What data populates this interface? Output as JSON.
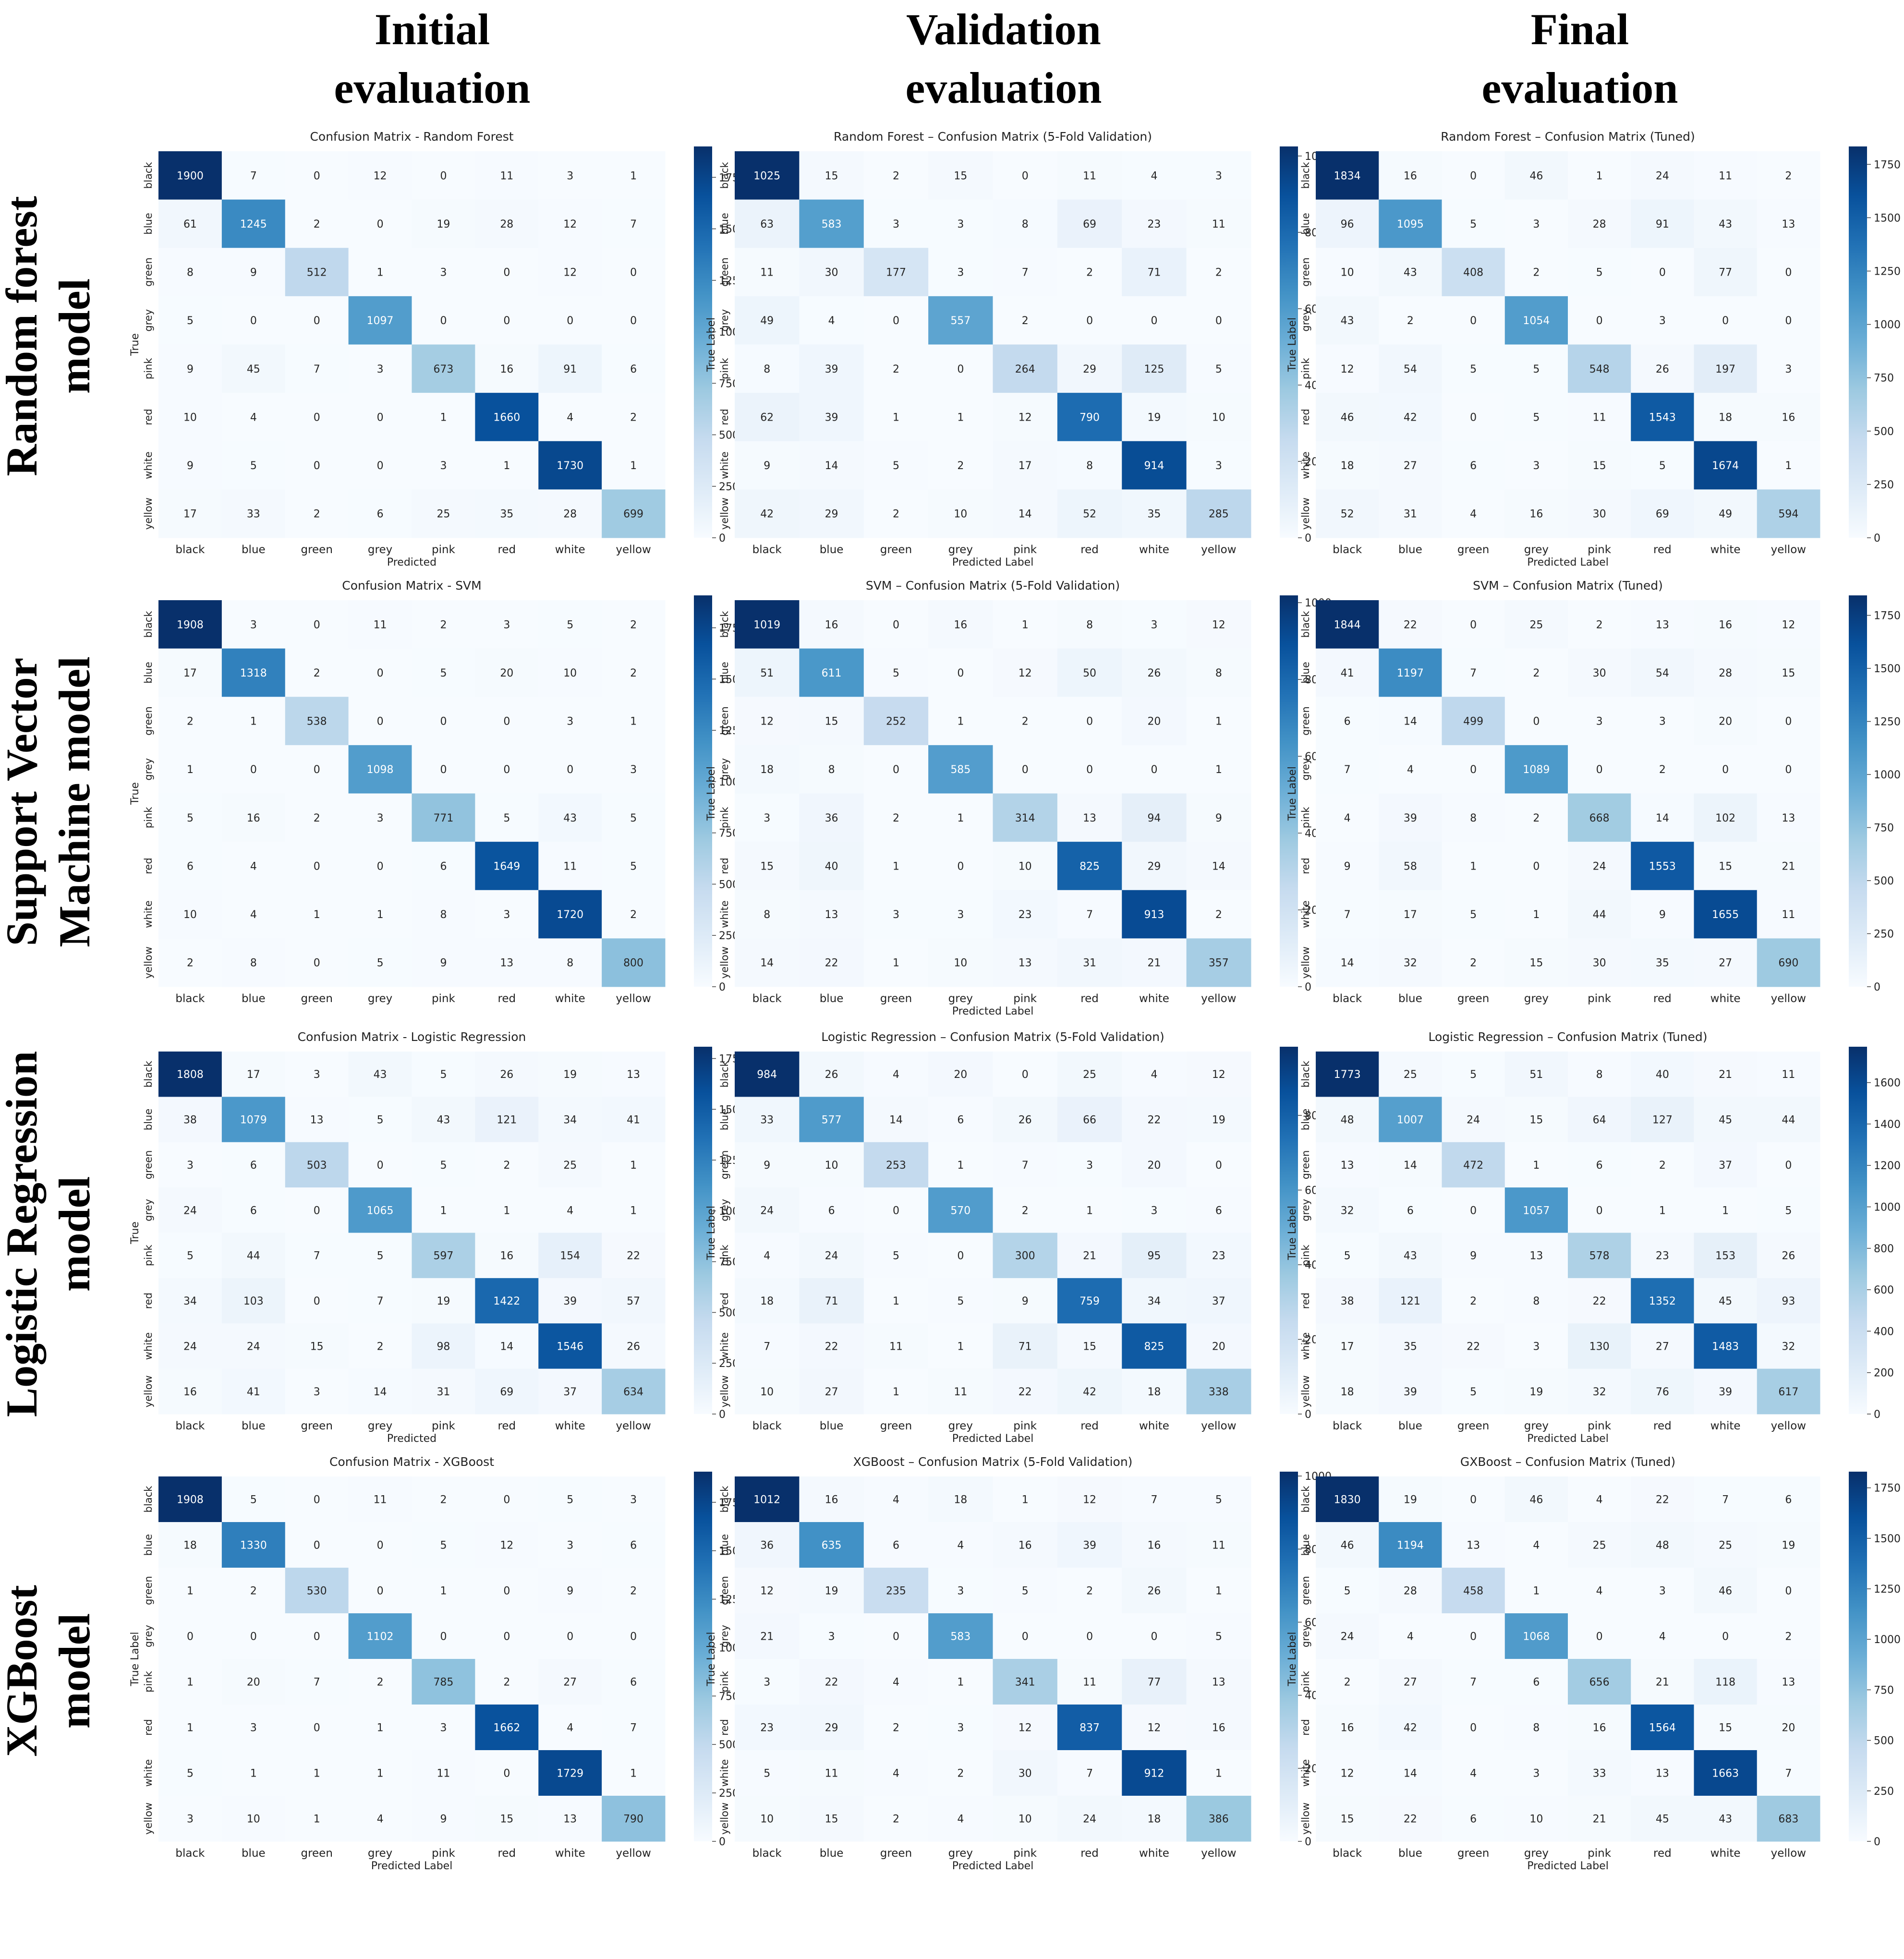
{
  "column_titles": [
    {
      "line1": "Initial",
      "line2": "evaluation"
    },
    {
      "line1": "Validation",
      "line2": "evaluation"
    },
    {
      "line1": "Final",
      "line2": "evaluation"
    }
  ],
  "row_titles": [
    {
      "line1": "Random forest",
      "line2": "model"
    },
    {
      "line1": "Support Vector",
      "line2": "Machine model"
    },
    {
      "line1": "Logistic Regression",
      "line2": "model"
    },
    {
      "line1": "XGBoost",
      "line2": "model"
    }
  ],
  "colors": {
    "low": "#f7fbff",
    "mid": "#1aa0cf",
    "high": "#08306b"
  },
  "chart_data": [
    {
      "type": "heatmap",
      "title": "Confusion Matrix - Random Forest",
      "xlabel": "Predicted",
      "ylabel": "True",
      "categories": [
        "black",
        "blue",
        "green",
        "grey",
        "pink",
        "red",
        "white",
        "yellow"
      ],
      "vmin": 0,
      "vmax": 1900,
      "colorbar_ticks": [
        "0",
        "250",
        "500",
        "750",
        "1000",
        "1250",
        "1500",
        "1750"
      ],
      "matrix": [
        [
          1900,
          7,
          0,
          12,
          0,
          11,
          3,
          1
        ],
        [
          61,
          1245,
          2,
          0,
          19,
          28,
          12,
          7
        ],
        [
          8,
          9,
          512,
          1,
          3,
          0,
          12,
          0
        ],
        [
          5,
          0,
          0,
          1097,
          0,
          0,
          0,
          0
        ],
        [
          9,
          45,
          7,
          3,
          673,
          16,
          91,
          6
        ],
        [
          10,
          4,
          0,
          0,
          1,
          1660,
          4,
          2
        ],
        [
          9,
          5,
          0,
          0,
          3,
          1,
          1730,
          1
        ],
        [
          17,
          33,
          2,
          6,
          25,
          35,
          28,
          699
        ]
      ]
    },
    {
      "type": "heatmap",
      "title": "Random Forest – Confusion Matrix (5-Fold Validation)",
      "xlabel": "Predicted Label",
      "ylabel": "True Label",
      "categories": [
        "black",
        "blue",
        "green",
        "grey",
        "pink",
        "red",
        "white",
        "yellow"
      ],
      "vmin": 0,
      "vmax": 1025,
      "colorbar_ticks": [
        "0",
        "200",
        "400",
        "600",
        "800",
        "1000"
      ],
      "matrix": [
        [
          1025,
          15,
          2,
          15,
          0,
          11,
          4,
          3
        ],
        [
          63,
          583,
          3,
          3,
          8,
          69,
          23,
          11
        ],
        [
          11,
          30,
          177,
          3,
          7,
          2,
          71,
          2
        ],
        [
          49,
          4,
          0,
          557,
          2,
          0,
          0,
          0
        ],
        [
          8,
          39,
          2,
          0,
          264,
          29,
          125,
          5
        ],
        [
          62,
          39,
          1,
          1,
          12,
          790,
          19,
          10
        ],
        [
          9,
          14,
          5,
          2,
          17,
          8,
          914,
          3
        ],
        [
          42,
          29,
          2,
          10,
          14,
          52,
          35,
          285
        ]
      ]
    },
    {
      "type": "heatmap",
      "title": "Random Forest – Confusion Matrix (Tuned)",
      "xlabel": "Predicted Label",
      "ylabel": "True Label",
      "categories": [
        "black",
        "blue",
        "green",
        "grey",
        "pink",
        "red",
        "white",
        "yellow"
      ],
      "vmin": 0,
      "vmax": 1834,
      "colorbar_ticks": [
        "0",
        "250",
        "500",
        "750",
        "1000",
        "1250",
        "1500",
        "1750"
      ],
      "matrix": [
        [
          1834,
          16,
          0,
          46,
          1,
          24,
          11,
          2
        ],
        [
          96,
          1095,
          5,
          3,
          28,
          91,
          43,
          13
        ],
        [
          10,
          43,
          408,
          2,
          5,
          0,
          77,
          0
        ],
        [
          43,
          2,
          0,
          1054,
          0,
          3,
          0,
          0
        ],
        [
          12,
          54,
          5,
          5,
          548,
          26,
          197,
          3
        ],
        [
          46,
          42,
          0,
          5,
          11,
          1543,
          18,
          16
        ],
        [
          18,
          27,
          6,
          3,
          15,
          5,
          1674,
          1
        ],
        [
          52,
          31,
          4,
          16,
          30,
          69,
          49,
          594
        ]
      ]
    },
    {
      "type": "heatmap",
      "title": "Confusion Matrix - SVM",
      "xlabel": "",
      "ylabel": "True",
      "categories": [
        "black",
        "blue",
        "green",
        "grey",
        "pink",
        "red",
        "white",
        "yellow"
      ],
      "vmin": 0,
      "vmax": 1908,
      "colorbar_ticks": [
        "0",
        "250",
        "500",
        "750",
        "1000",
        "1250",
        "1500",
        "1750"
      ],
      "matrix": [
        [
          1908,
          3,
          0,
          11,
          2,
          3,
          5,
          2
        ],
        [
          17,
          1318,
          2,
          0,
          5,
          20,
          10,
          2
        ],
        [
          2,
          1,
          538,
          0,
          0,
          0,
          3,
          1
        ],
        [
          1,
          0,
          0,
          1098,
          0,
          0,
          0,
          3
        ],
        [
          5,
          16,
          2,
          3,
          771,
          5,
          43,
          5
        ],
        [
          6,
          4,
          0,
          0,
          6,
          1649,
          11,
          5
        ],
        [
          10,
          4,
          1,
          1,
          8,
          3,
          1720,
          2
        ],
        [
          2,
          8,
          0,
          5,
          9,
          13,
          8,
          800
        ]
      ]
    },
    {
      "type": "heatmap",
      "title": "SVM – Confusion Matrix (5-Fold Validation)",
      "xlabel": "Predicted Label",
      "ylabel": "True Label",
      "categories": [
        "black",
        "blue",
        "green",
        "grey",
        "pink",
        "red",
        "white",
        "yellow"
      ],
      "vmin": 0,
      "vmax": 1019,
      "colorbar_ticks": [
        "0",
        "200",
        "400",
        "600",
        "800",
        "1000"
      ],
      "matrix": [
        [
          1019,
          16,
          0,
          16,
          1,
          8,
          3,
          12
        ],
        [
          51,
          611,
          5,
          0,
          12,
          50,
          26,
          8
        ],
        [
          12,
          15,
          252,
          1,
          2,
          0,
          20,
          1
        ],
        [
          18,
          8,
          0,
          585,
          0,
          0,
          0,
          1
        ],
        [
          3,
          36,
          2,
          1,
          314,
          13,
          94,
          9
        ],
        [
          15,
          40,
          1,
          0,
          10,
          825,
          29,
          14
        ],
        [
          8,
          13,
          3,
          3,
          23,
          7,
          913,
          2
        ],
        [
          14,
          22,
          1,
          10,
          13,
          31,
          21,
          357
        ]
      ]
    },
    {
      "type": "heatmap",
      "title": "SVM – Confusion Matrix (Tuned)",
      "xlabel": "",
      "ylabel": "True Label",
      "categories": [
        "black",
        "blue",
        "green",
        "grey",
        "pink",
        "red",
        "white",
        "yellow"
      ],
      "vmin": 0,
      "vmax": 1844,
      "colorbar_ticks": [
        "0",
        "250",
        "500",
        "750",
        "1000",
        "1250",
        "1500",
        "1750"
      ],
      "matrix": [
        [
          1844,
          22,
          0,
          25,
          2,
          13,
          16,
          12
        ],
        [
          41,
          1197,
          7,
          2,
          30,
          54,
          28,
          15
        ],
        [
          6,
          14,
          499,
          0,
          3,
          3,
          20,
          0
        ],
        [
          7,
          4,
          0,
          1089,
          0,
          2,
          0,
          0
        ],
        [
          4,
          39,
          8,
          2,
          668,
          14,
          102,
          13
        ],
        [
          9,
          58,
          1,
          0,
          24,
          1553,
          15,
          21
        ],
        [
          7,
          17,
          5,
          1,
          44,
          9,
          1655,
          11
        ],
        [
          14,
          32,
          2,
          15,
          30,
          35,
          27,
          690
        ]
      ]
    },
    {
      "type": "heatmap",
      "title": "Confusion Matrix - Logistic Regression",
      "xlabel": "Predicted",
      "ylabel": "True",
      "categories": [
        "black",
        "blue",
        "green",
        "grey",
        "pink",
        "red",
        "white",
        "yellow"
      ],
      "vmin": 0,
      "vmax": 1808,
      "colorbar_ticks": [
        "0",
        "250",
        "500",
        "750",
        "1000",
        "1250",
        "1500",
        "1750"
      ],
      "matrix": [
        [
          1808,
          17,
          3,
          43,
          5,
          26,
          19,
          13
        ],
        [
          38,
          1079,
          13,
          5,
          43,
          121,
          34,
          41
        ],
        [
          3,
          6,
          503,
          0,
          5,
          2,
          25,
          1
        ],
        [
          24,
          6,
          0,
          1065,
          1,
          1,
          4,
          1
        ],
        [
          5,
          44,
          7,
          5,
          597,
          16,
          154,
          22
        ],
        [
          34,
          103,
          0,
          7,
          19,
          1422,
          39,
          57
        ],
        [
          24,
          24,
          15,
          2,
          98,
          14,
          1546,
          26
        ],
        [
          16,
          41,
          3,
          14,
          31,
          69,
          37,
          634
        ]
      ]
    },
    {
      "type": "heatmap",
      "title": "Logistic Regression – Confusion Matrix (5-Fold Validation)",
      "xlabel": "Predicted Label",
      "ylabel": "True Label",
      "categories": [
        "black",
        "blue",
        "green",
        "grey",
        "pink",
        "red",
        "white",
        "yellow"
      ],
      "vmin": 0,
      "vmax": 984,
      "colorbar_ticks": [
        "0",
        "200",
        "400",
        "600",
        "800"
      ],
      "matrix": [
        [
          984,
          26,
          4,
          20,
          0,
          25,
          4,
          12
        ],
        [
          33,
          577,
          14,
          6,
          26,
          66,
          22,
          19
        ],
        [
          9,
          10,
          253,
          1,
          7,
          3,
          20,
          0
        ],
        [
          24,
          6,
          0,
          570,
          2,
          1,
          3,
          6
        ],
        [
          4,
          24,
          5,
          0,
          300,
          21,
          95,
          23
        ],
        [
          18,
          71,
          1,
          5,
          9,
          759,
          34,
          37
        ],
        [
          7,
          22,
          11,
          1,
          71,
          15,
          825,
          20
        ],
        [
          10,
          27,
          1,
          11,
          22,
          42,
          18,
          338
        ]
      ]
    },
    {
      "type": "heatmap",
      "title": "Logistic Regression – Confusion Matrix (Tuned)",
      "xlabel": "Predicted Label",
      "ylabel": "True Label",
      "categories": [
        "black",
        "blue",
        "green",
        "grey",
        "pink",
        "red",
        "white",
        "yellow"
      ],
      "vmin": 0,
      "vmax": 1773,
      "colorbar_ticks": [
        "0",
        "200",
        "400",
        "600",
        "800",
        "1000",
        "1200",
        "1400",
        "1600"
      ],
      "matrix": [
        [
          1773,
          25,
          5,
          51,
          8,
          40,
          21,
          11
        ],
        [
          48,
          1007,
          24,
          15,
          64,
          127,
          45,
          44
        ],
        [
          13,
          14,
          472,
          1,
          6,
          2,
          37,
          0
        ],
        [
          32,
          6,
          0,
          1057,
          0,
          1,
          1,
          5
        ],
        [
          5,
          43,
          9,
          13,
          578,
          23,
          153,
          26
        ],
        [
          38,
          121,
          2,
          8,
          22,
          1352,
          45,
          93
        ],
        [
          17,
          35,
          22,
          3,
          130,
          27,
          1483,
          32
        ],
        [
          18,
          39,
          5,
          19,
          32,
          76,
          39,
          617
        ]
      ]
    },
    {
      "type": "heatmap",
      "title": "Confusion Matrix - XGBoost",
      "xlabel": "Predicted Label",
      "ylabel": "True Label",
      "categories": [
        "black",
        "blue",
        "green",
        "grey",
        "pink",
        "red",
        "white",
        "yellow"
      ],
      "vmin": 0,
      "vmax": 1908,
      "colorbar_ticks": [
        "0",
        "250",
        "500",
        "750",
        "1000",
        "1250",
        "1500",
        "1750"
      ],
      "matrix": [
        [
          1908,
          5,
          0,
          11,
          2,
          0,
          5,
          3
        ],
        [
          18,
          1330,
          0,
          0,
          5,
          12,
          3,
          6
        ],
        [
          1,
          2,
          530,
          0,
          1,
          0,
          9,
          2
        ],
        [
          0,
          0,
          0,
          1102,
          0,
          0,
          0,
          0
        ],
        [
          1,
          20,
          7,
          2,
          785,
          2,
          27,
          6
        ],
        [
          1,
          3,
          0,
          1,
          3,
          1662,
          4,
          7
        ],
        [
          5,
          1,
          1,
          1,
          11,
          0,
          1729,
          1
        ],
        [
          3,
          10,
          1,
          4,
          9,
          15,
          13,
          790
        ]
      ]
    },
    {
      "type": "heatmap",
      "title": "XGBoost – Confusion Matrix (5-Fold Validation)",
      "xlabel": "Predicted Label",
      "ylabel": "True Label",
      "categories": [
        "black",
        "blue",
        "green",
        "grey",
        "pink",
        "red",
        "white",
        "yellow"
      ],
      "vmin": 0,
      "vmax": 1012,
      "colorbar_ticks": [
        "0",
        "200",
        "400",
        "600",
        "800",
        "1000"
      ],
      "matrix": [
        [
          1012,
          16,
          4,
          18,
          1,
          12,
          7,
          5
        ],
        [
          36,
          635,
          6,
          4,
          16,
          39,
          16,
          11
        ],
        [
          12,
          19,
          235,
          3,
          5,
          2,
          26,
          1
        ],
        [
          21,
          3,
          0,
          583,
          0,
          0,
          0,
          5
        ],
        [
          3,
          22,
          4,
          1,
          341,
          11,
          77,
          13
        ],
        [
          23,
          29,
          2,
          3,
          12,
          837,
          12,
          16
        ],
        [
          5,
          11,
          4,
          2,
          30,
          7,
          912,
          1
        ],
        [
          10,
          15,
          2,
          4,
          10,
          24,
          18,
          386
        ]
      ]
    },
    {
      "type": "heatmap",
      "title": "GXBoost – Confusion Matrix (Tuned)",
      "xlabel": "Predicted Label",
      "ylabel": "True Label",
      "categories": [
        "black",
        "blue",
        "green",
        "grey",
        "pink",
        "red",
        "white",
        "yellow"
      ],
      "vmin": 0,
      "vmax": 1830,
      "colorbar_ticks": [
        "0",
        "250",
        "500",
        "750",
        "1000",
        "1250",
        "1500",
        "1750"
      ],
      "matrix": [
        [
          1830,
          19,
          0,
          46,
          4,
          22,
          7,
          6
        ],
        [
          46,
          1194,
          13,
          4,
          25,
          48,
          25,
          19
        ],
        [
          5,
          28,
          458,
          1,
          4,
          3,
          46,
          0
        ],
        [
          24,
          4,
          0,
          1068,
          0,
          4,
          0,
          2
        ],
        [
          2,
          27,
          7,
          6,
          656,
          21,
          118,
          13
        ],
        [
          16,
          42,
          0,
          8,
          16,
          1564,
          15,
          20
        ],
        [
          12,
          14,
          4,
          3,
          33,
          13,
          1663,
          7
        ],
        [
          15,
          22,
          6,
          10,
          21,
          45,
          43,
          683
        ]
      ]
    }
  ]
}
